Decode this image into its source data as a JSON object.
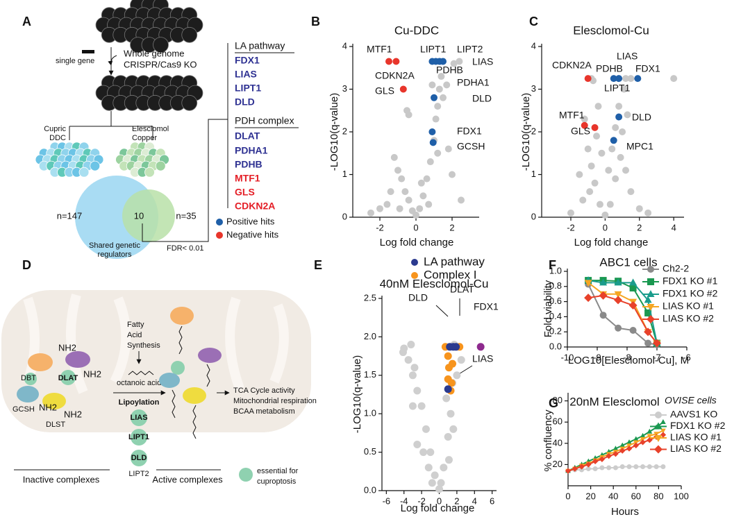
{
  "panel_labels": [
    "A",
    "B",
    "C",
    "D",
    "E",
    "F",
    "G"
  ],
  "panel_a": {
    "single_gene": "single gene",
    "screen": [
      "Whole genome",
      "CRISPR/Cas9 KO"
    ],
    "left_arm": [
      "Cupric",
      "DDC"
    ],
    "right_arm": [
      "Elesclomol",
      "Copper"
    ],
    "venn": {
      "left": "n=147",
      "shared": "10",
      "right": "n=35"
    },
    "shared_caption": [
      "Shared genetic",
      "regulators"
    ],
    "threshold": "FDR< 0.01",
    "groups": [
      {
        "heading": "LA pathway",
        "genes": [
          "FDX1",
          "LIAS",
          "LIPT1",
          "DLD"
        ]
      },
      {
        "heading": "PDH complex",
        "genes": [
          "DLAT",
          "PDHA1",
          "PDHB",
          "MTF1",
          "GLS",
          "CDKN2A"
        ]
      }
    ],
    "hits_legend": [
      "Positive hits",
      "Negative hits"
    ]
  },
  "panel_d": {
    "synthesis": [
      "Fatty",
      "Acid",
      "Synthesis"
    ],
    "octanoic": "octanoic acid",
    "lipoylation": "Lipoylation",
    "enzymes": [
      "LIAS",
      "LIPT1",
      "DLD"
    ],
    "lipt2": "LIPT2",
    "proteins": [
      "DBT",
      "DLAT",
      "GCSH",
      "DLST"
    ],
    "nh2": "NH2",
    "inactive": "Inactive complexes",
    "active": "Active complexes",
    "outcomes": [
      "TCA Cycle activity",
      "Mitochondrial respiration",
      "BCAA metabolism"
    ],
    "key": [
      "essential for",
      "cuproptosis"
    ]
  },
  "chart_data": [
    {
      "type": "scatter",
      "title": "Cu-DDC",
      "xlabel": "Log fold change",
      "ylabel": "-LOG10(q-value)",
      "xlim": [
        -3.5,
        3.5
      ],
      "ylim": [
        0,
        4
      ],
      "xticks": [
        -2,
        0,
        2
      ],
      "yticks": [
        0,
        1,
        2,
        3,
        4
      ],
      "series": [
        {
          "color": "#c8c8c8",
          "x": [
            0,
            0.2,
            -0.2,
            0.4,
            -0.4,
            0.6,
            -0.6,
            0.8,
            -0.8,
            1,
            -1,
            1.1,
            1.2,
            1.3,
            1.4,
            1.5,
            1.7,
            2.1,
            2.4,
            -1.2,
            -1.4,
            -2,
            -2.5,
            2,
            1.8,
            -0.5,
            -0.4,
            0.3,
            -1.6,
            0.9,
            1.2,
            0.7,
            2.5,
            -0.9
          ],
          "values": [
            0.05,
            0.2,
            0.15,
            0.5,
            0.4,
            0.9,
            0.6,
            1.3,
            0.9,
            1.8,
            1.1,
            2.3,
            2.6,
            3,
            3.3,
            2.8,
            3.1,
            3.6,
            3.65,
            1.4,
            0.6,
            0.2,
            0.1,
            1,
            1.6,
            2.5,
            2.4,
            0.8,
            0.3,
            3.1,
            1.5,
            0.3,
            0.4,
            0.2
          ]
        },
        {
          "color": "#1f5fa8",
          "x": [
            0.9,
            1.1,
            1.3,
            1.5,
            1.0,
            0.9,
            0.95
          ],
          "values": [
            3.65,
            3.65,
            3.65,
            3.65,
            2.8,
            2.0,
            1.75
          ]
        },
        {
          "color": "#e8352b",
          "x": [
            -1.5,
            -1.1,
            -0.7
          ],
          "values": [
            3.65,
            3.65,
            3.0
          ]
        }
      ],
      "annotations": [
        "MTF1",
        "LIPT1",
        "LIPT2",
        "LIAS",
        "CDKN2A",
        "PDHB",
        "PDHA1",
        "GLS",
        "DLD",
        "FDX1",
        "GCSH"
      ]
    },
    {
      "type": "scatter",
      "title": "Elesclomol-Cu",
      "xlabel": "Log fold change",
      "ylabel": "-LOG10(q-value)",
      "xlim": [
        -3.7,
        4.6
      ],
      "ylim": [
        0,
        4
      ],
      "xticks": [
        -2,
        0,
        2,
        4
      ],
      "yticks": [
        0,
        1,
        2,
        3,
        4
      ],
      "series": [
        {
          "color": "#c8c8c8",
          "x": [
            -0.3,
            0.3,
            0,
            -0.6,
            -0.8,
            -1,
            -0.9,
            -1.3,
            -2,
            0.6,
            0.9,
            1,
            0.8,
            1.2,
            1.5,
            2,
            -0.5,
            -1.2,
            -0.7,
            1.3,
            0.6,
            -0.2,
            0.2,
            2.5,
            -1.5,
            1.1,
            0.4,
            -0.4,
            -0.8,
            1.2,
            1.5,
            4
          ],
          "values": [
            0.3,
            0.3,
            0.05,
            0.8,
            1.2,
            1.6,
            0.6,
            0.4,
            0.1,
            0.9,
            1.4,
            2,
            2.6,
            1.1,
            0.6,
            0.2,
            1.9,
            2.3,
            3.2,
            2.4,
            2.1,
            1.5,
            1.1,
            0.1,
            1,
            3,
            1.6,
            2.6,
            3.25,
            3.25,
            3.25,
            3.25
          ]
        },
        {
          "color": "#1f5fa8",
          "x": [
            0.5,
            0.8,
            1.9,
            0.8,
            0.5
          ],
          "values": [
            3.25,
            3.25,
            3.25,
            2.35,
            1.8
          ]
        },
        {
          "color": "#e8352b",
          "x": [
            -1.0,
            -1.2,
            -0.6
          ],
          "values": [
            3.25,
            2.15,
            2.1
          ]
        }
      ],
      "annotations": [
        "CDKN2A",
        "PDHB",
        "LIAS",
        "FDX1",
        "LIPT1",
        "MTF1",
        "DLD",
        "GLS",
        "MPC1"
      ]
    },
    {
      "type": "scatter",
      "title": "40nM Elesclomol-Cu",
      "xlabel": "Log fold change",
      "ylabel": "-LOG10(q-value)",
      "xlim": [
        -6.5,
        6.5
      ],
      "ylim": [
        0,
        2.5
      ],
      "xticks": [
        -6,
        -4,
        -2,
        0,
        2,
        4,
        6
      ],
      "yticks": [
        {
          "value": 0,
          "label": "0.0"
        },
        0.5,
        {
          "value": 1,
          "label": "1.0"
        },
        1.5,
        {
          "value": 2,
          "label": "2.0"
        },
        2.5
      ],
      "series": [
        {
          "color": "#cfcfcf",
          "x": [
            -4,
            -3.5,
            -3,
            -2.5,
            -3.2,
            -2,
            -1.5,
            -1,
            -0.5,
            0,
            0.5,
            1,
            1.3,
            0.8,
            1.5,
            1.7,
            2,
            -1.2,
            -2.5,
            -3,
            -1.8,
            0.2,
            1.1,
            -0.8,
            2.5,
            -2.8,
            -4.1,
            1.6
          ],
          "values": [
            1.85,
            1.7,
            1.5,
            1.3,
            1.9,
            1.1,
            0.8,
            0.5,
            0.2,
            0.02,
            0.3,
            0.7,
            1,
            1.2,
            1.4,
            1.9,
            1.5,
            0.3,
            0.6,
            1.1,
            0.5,
            0.1,
            0.4,
            0.1,
            1.7,
            1.6,
            1.8,
            0.8
          ]
        },
        {
          "name": "Complex I",
          "color": "#f7941d",
          "x": [
            0.7,
            2.3,
            1.0,
            1.1,
            1.5,
            1.0,
            1.3,
            1.4
          ],
          "values": [
            1.87,
            1.87,
            1.75,
            1.6,
            1.65,
            1.45,
            1.3,
            1.4
          ]
        },
        {
          "name": "LA  pathway",
          "color": "#2b3a8f",
          "x": [
            1.2,
            1.6,
            1.9,
            1.0
          ],
          "values": [
            1.87,
            1.87,
            1.87,
            1.32
          ]
        },
        {
          "color": "#8e2a8e",
          "x": [
            4.7
          ],
          "values": [
            1.87
          ]
        }
      ],
      "annotations": [
        "DLD",
        "DLAT",
        "FDX1",
        "LIAS"
      ]
    },
    {
      "type": "line",
      "title": "ABC1 cells",
      "xlabel": "LOG10[Elesclomol-Cu], M",
      "ylabel": "Fold viability",
      "xlim": [
        -10,
        -6
      ],
      "ylim": [
        0,
        1
      ],
      "xticks": [
        -10,
        -9,
        -8,
        -7,
        -6
      ],
      "yticks": [
        {
          "value": 0,
          "label": "0.0"
        },
        0.2,
        0.4,
        0.6,
        0.8,
        {
          "value": 1,
          "label": "1.0"
        }
      ],
      "x": [
        -9.3,
        -8.8,
        -8.3,
        -7.8,
        -7.3,
        -7.0
      ],
      "series": [
        {
          "name": "Ch2-2",
          "color": "#8a8a8a",
          "marker": "circle",
          "values": [
            0.83,
            0.42,
            0.25,
            0.22,
            0.05,
            0.03
          ]
        },
        {
          "name": "FDX1 KO #1",
          "color": "#1a9850",
          "marker": "square",
          "values": [
            0.88,
            0.88,
            0.87,
            0.78,
            0.45,
            0.05
          ]
        },
        {
          "name": "FDX1 KO #2",
          "color": "#1a9c8c",
          "marker": "triangle",
          "values": [
            0.88,
            0.85,
            0.85,
            0.85,
            0.62,
            0.05
          ]
        },
        {
          "name": "LIAS KO #1",
          "color": "#f5a623",
          "marker": "triangle-down",
          "values": [
            0.85,
            0.7,
            0.7,
            0.6,
            0.2,
            0.05
          ]
        },
        {
          "name": "LIAS KO #2",
          "color": "#e8412a",
          "marker": "diamond",
          "values": [
            0.65,
            0.68,
            0.62,
            0.55,
            0.2,
            0.05
          ]
        }
      ]
    },
    {
      "type": "line",
      "title": "20nM Elesclomol",
      "legend_title": "OVISE cells",
      "xlabel": "Hours",
      "ylabel": "% confluency",
      "xlim": [
        0,
        100
      ],
      "ylim": [
        0,
        85
      ],
      "xticks": [
        0,
        20,
        40,
        60,
        80,
        100
      ],
      "yticks": [
        20,
        40,
        60,
        80
      ],
      "x": [
        0,
        6,
        12,
        18,
        24,
        30,
        36,
        42,
        48,
        54,
        60,
        66,
        72,
        78,
        84
      ],
      "series": [
        {
          "name": "AAVS1 KO",
          "color": "#cccccc",
          "marker": "circle",
          "values": [
            14,
            15,
            15,
            16,
            16,
            17,
            17,
            17,
            18,
            18,
            18,
            18,
            18,
            18,
            18
          ]
        },
        {
          "name": "FDX1 KO #2",
          "color": "#1a9850",
          "marker": "triangle",
          "values": [
            14,
            17,
            20,
            23,
            26,
            29,
            32,
            35,
            38,
            41,
            44,
            47,
            51,
            55,
            60
          ]
        },
        {
          "name": "LIAS KO #1",
          "color": "#f5a623",
          "marker": "triangle-down",
          "values": [
            14,
            16,
            19,
            21,
            24,
            27,
            30,
            32,
            35,
            38,
            41,
            44,
            47,
            49,
            52
          ]
        },
        {
          "name": "LIAS KO #2",
          "color": "#e8412a",
          "marker": "diamond",
          "values": [
            14,
            16,
            18,
            20,
            23,
            25,
            28,
            30,
            33,
            35,
            38,
            41,
            43,
            46,
            48
          ]
        }
      ]
    }
  ]
}
